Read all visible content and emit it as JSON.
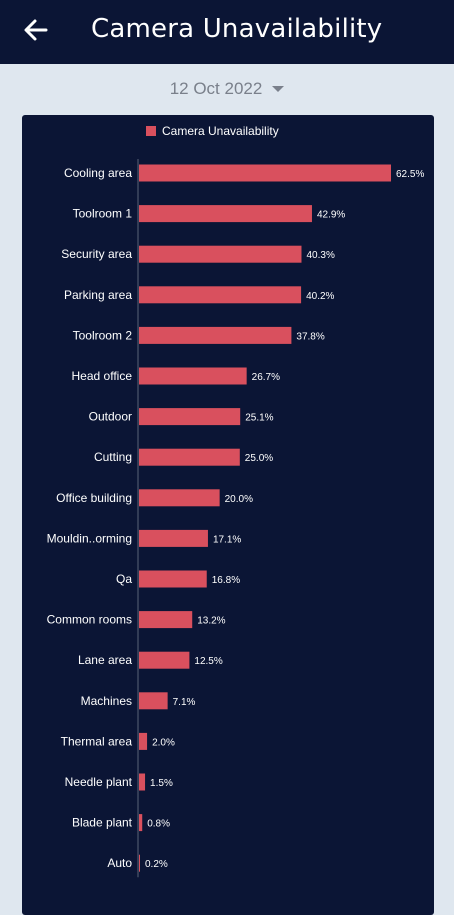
{
  "app_bar": {
    "title": "Camera Unavailability",
    "back_icon": "arrow-left-icon"
  },
  "date_filter": {
    "value": "12 Oct 2022",
    "icon": "caret-down-icon"
  },
  "colors": {
    "app_bar": "#0b1535",
    "card": "#0b1535",
    "bar": "#d9505e",
    "background": "#dfe7ef"
  },
  "chart_data": {
    "type": "bar",
    "orientation": "horizontal",
    "legend_position": "top",
    "series": [
      {
        "name": "Camera Unavailability",
        "color": "#d9505e"
      }
    ],
    "categories": [
      "Cooling area",
      "Toolroom 1",
      "Security area",
      "Parking area",
      "Toolroom 2",
      "Head office",
      "Outdoor",
      "Cutting",
      "Office building",
      "Mouldin..orming",
      "Qa",
      "Common rooms",
      "Lane area",
      "Machines",
      "Thermal area",
      "Needle plant",
      "Blade plant",
      "Auto"
    ],
    "values": [
      62.5,
      42.9,
      40.3,
      40.2,
      37.8,
      26.7,
      25.1,
      25.0,
      20.0,
      17.1,
      16.8,
      13.2,
      12.5,
      7.1,
      2.0,
      1.5,
      0.8,
      0.2
    ],
    "value_labels": [
      "62.5%",
      "42.9%",
      "40.3%",
      "40.2%",
      "37.8%",
      "26.7%",
      "25.1%",
      "25.0%",
      "20.0%",
      "17.1%",
      "16.8%",
      "13.2%",
      "12.5%",
      "7.1%",
      "2.0%",
      "1.5%",
      "0.8%",
      "0.2%"
    ],
    "xlim": [
      0,
      62.5
    ],
    "grid": false
  }
}
